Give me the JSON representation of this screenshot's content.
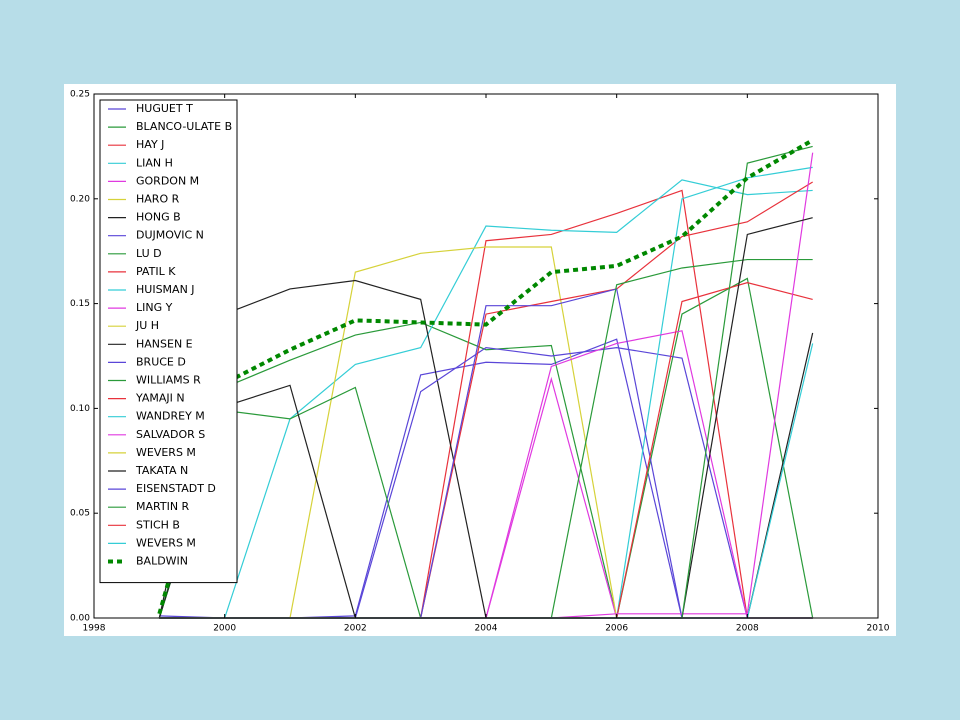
{
  "chart_data": {
    "type": "line",
    "x": [
      1999,
      2000,
      2001,
      2002,
      2003,
      2004,
      2005,
      2006,
      2007,
      2008,
      2009
    ],
    "xlim": [
      1998,
      2010
    ],
    "xticks": [
      1998,
      2000,
      2002,
      2004,
      2006,
      2008,
      2010
    ],
    "ylim": [
      0,
      0.25
    ],
    "yticks": [
      {
        "value": 0,
        "label": "0.00"
      },
      0.05,
      {
        "value": 0.1,
        "label": "0.10"
      },
      0.15,
      {
        "value": 0.2,
        "label": "0.20"
      },
      0.25
    ],
    "legend": "upper left",
    "grid": false,
    "series": [
      {
        "name": "HUGUET T",
        "color": "#5a46d8",
        "values": [
          0.001,
          0,
          0,
          0.001,
          0.116,
          0.122,
          0.121,
          0.133,
          0,
          0,
          0
        ]
      },
      {
        "name": "BLANCO-ULATE B",
        "color": "#2a9a3a",
        "values": [
          0,
          0.11,
          0.123,
          0.135,
          0.141,
          0.128,
          0.13,
          0,
          0.145,
          0.162,
          0
        ]
      },
      {
        "name": "HAY J",
        "color": "#e8323c",
        "values": [
          0,
          0,
          0,
          0,
          0,
          0.18,
          0.183,
          0.193,
          0.204,
          0,
          0
        ]
      },
      {
        "name": "LIAN H",
        "color": "#34cdd6",
        "values": [
          0,
          0,
          0.095,
          0.121,
          0.129,
          0.187,
          0.185,
          0.184,
          0.209,
          0.202,
          0.204
        ]
      },
      {
        "name": "GORDON M",
        "color": "#e03ae0",
        "values": [
          0,
          0,
          0,
          0,
          0,
          0,
          0.114,
          0,
          0,
          0,
          0
        ]
      },
      {
        "name": "HARO R",
        "color": "#d6d23a",
        "values": [
          0,
          0,
          0,
          0.165,
          0.174,
          0.177,
          0.177,
          0,
          0,
          0,
          0
        ]
      },
      {
        "name": "HONG B",
        "color": "#222222",
        "values": [
          0,
          0.145,
          0.157,
          0.161,
          0.152,
          0,
          0,
          0,
          0,
          0,
          0
        ]
      },
      {
        "name": "DUJMOVIC N",
        "color": "#5a46d8",
        "values": [
          0,
          0,
          0,
          0,
          0.108,
          0.129,
          0.125,
          0.129,
          0.124,
          0,
          0
        ]
      },
      {
        "name": "LU D",
        "color": "#2a9a3a",
        "values": [
          0,
          0.099,
          0.095,
          0.11,
          0,
          0,
          0,
          0,
          0,
          0,
          0
        ]
      },
      {
        "name": "PATIL K",
        "color": "#e8323c",
        "values": [
          0,
          0,
          0,
          0,
          0,
          0.145,
          0.151,
          0.157,
          0.182,
          0.189,
          0.208
        ]
      },
      {
        "name": "HUISMAN J",
        "color": "#34cdd6",
        "values": [
          0,
          0,
          0,
          0,
          0,
          0,
          0,
          0,
          0.2,
          0.21,
          0.215
        ]
      },
      {
        "name": "LING Y",
        "color": "#e03ae0",
        "values": [
          0,
          0,
          0,
          0,
          0,
          0,
          0.12,
          0.131,
          0.137,
          0,
          0
        ]
      },
      {
        "name": "JU H",
        "color": "#d6d23a",
        "values": [
          0,
          0,
          0,
          0,
          0,
          0,
          0,
          0,
          0,
          0,
          0
        ]
      },
      {
        "name": "HANSEN E",
        "color": "#222222",
        "values": [
          0,
          0.101,
          0.111,
          0,
          0,
          0,
          0,
          0,
          0,
          0,
          0.136
        ]
      },
      {
        "name": "BRUCE D",
        "color": "#5a46d8",
        "values": [
          0,
          0,
          0,
          0,
          0,
          0.149,
          0.149,
          0.157,
          0,
          0,
          0
        ]
      },
      {
        "name": "WILLIAMS R",
        "color": "#2a9a3a",
        "values": [
          0,
          0,
          0,
          0,
          0,
          0,
          0,
          0.159,
          0.167,
          0.171,
          0.171
        ]
      },
      {
        "name": "YAMAJI N",
        "color": "#e8323c",
        "values": [
          0,
          0,
          0,
          0,
          0,
          0,
          0,
          0,
          0.151,
          0.16,
          0.152
        ]
      },
      {
        "name": "WANDREY M",
        "color": "#34cdd6",
        "values": [
          0,
          0,
          0,
          0,
          0,
          0,
          0,
          0,
          0,
          0,
          0.131
        ]
      },
      {
        "name": "SALVADOR S",
        "color": "#e03ae0",
        "values": [
          0,
          0,
          0,
          0,
          0,
          0,
          0,
          0.002,
          0.002,
          0.002,
          0.222
        ]
      },
      {
        "name": "WEVERS M",
        "color": "#d6d23a",
        "values": [
          0,
          0,
          0,
          0,
          0,
          0,
          0,
          0,
          0,
          0,
          0
        ]
      },
      {
        "name": "TAKATA N",
        "color": "#222222",
        "values": [
          0,
          0,
          0,
          0,
          0,
          0,
          0,
          0,
          0,
          0.183,
          0.191
        ]
      },
      {
        "name": "EISENSTADT D",
        "color": "#5a46d8",
        "values": [
          0,
          0,
          0,
          0,
          0,
          0,
          0,
          0,
          0,
          0,
          0
        ]
      },
      {
        "name": "MARTIN R",
        "color": "#2a9a3a",
        "values": [
          0,
          0,
          0,
          0,
          0,
          0,
          0,
          0,
          0,
          0.217,
          0.225
        ]
      },
      {
        "name": "STICH B",
        "color": "#e8323c",
        "values": [
          0,
          0,
          0,
          0,
          0,
          0,
          0,
          0,
          0,
          0,
          0
        ]
      },
      {
        "name": "WEVERS M",
        "color": "#34cdd6",
        "values": [
          0,
          0,
          0,
          0,
          0,
          0,
          0,
          0,
          0,
          0,
          0
        ]
      },
      {
        "name": "BALDWIN",
        "color": "#008800",
        "dashed": true,
        "values": [
          0.002,
          0.112,
          0.128,
          0.142,
          0.141,
          0.14,
          0.165,
          0.168,
          0.182,
          0.21,
          0.228
        ]
      }
    ]
  }
}
